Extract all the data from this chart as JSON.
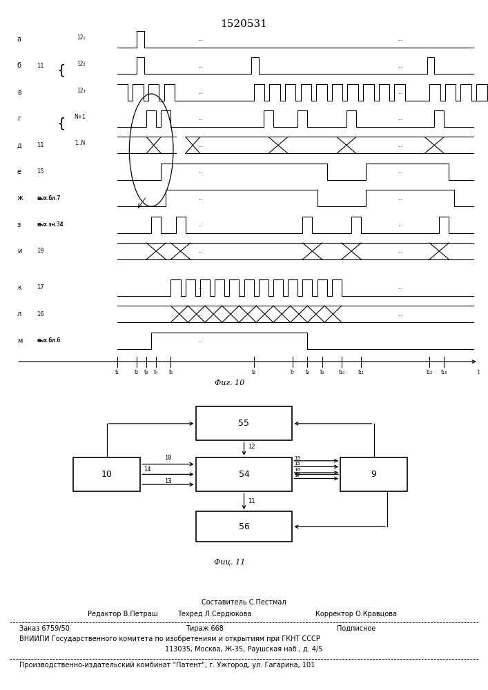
{
  "title": "1520531",
  "fig10_label": "Фиг. 10",
  "fig11_label": "Фиц. 11",
  "background_color": "#ffffff"
}
